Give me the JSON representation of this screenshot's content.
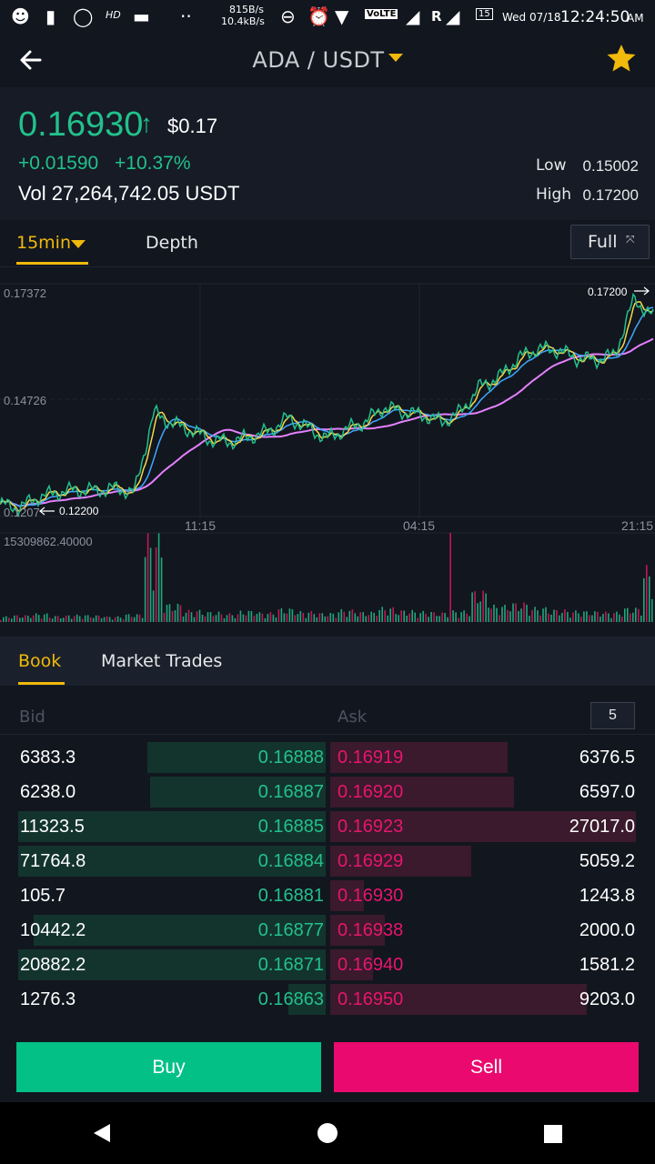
{
  "status_bar": {
    "net_up": "815B/s",
    "net_down": "10.4kB/s",
    "hd": "HD",
    "volte": "VoLTE",
    "roaming": "R",
    "notif_count": "15",
    "date": "Wed 07/18",
    "time": "12:24:50",
    "ampm": "AM"
  },
  "header": {
    "pair": "ADA / USDT",
    "accent": "#f0b90b"
  },
  "ticker": {
    "last_price": "0.16930",
    "usd_price": "$0.17",
    "change_abs": "+0.01590",
    "change_pct": "+10.37%",
    "volume": "Vol 27,264,742.05 USDT",
    "low_label": "Low",
    "low_value": "0.15002",
    "high_label": "High",
    "high_value": "0.17200",
    "up_color": "#22c18b",
    "down_color": "#e8156e"
  },
  "chart_tabs": {
    "interval": "15min",
    "depth": "Depth",
    "full": "Full"
  },
  "chart_data": {
    "type": "line",
    "y_axis_labels": [
      "0.17372",
      "0.14726",
      "0.1207"
    ],
    "x_axis_labels": [
      "11:15",
      "04:15",
      "21:15"
    ],
    "max_marker": "0.17200",
    "min_marker": "0.12200",
    "volume_max_label": "15309862.40000",
    "price": [
      0.1235,
      0.1227,
      0.1251,
      0.1262,
      0.1268,
      0.1266,
      0.1271,
      0.1262,
      0.1443,
      0.1418,
      0.1402,
      0.1381,
      0.1377,
      0.1389,
      0.1401,
      0.1432,
      0.1409,
      0.1385,
      0.1405,
      0.1423,
      0.1456,
      0.1445,
      0.1438,
      0.1422,
      0.1446,
      0.1504,
      0.1525,
      0.1568,
      0.1589,
      0.1586,
      0.1568,
      0.1563,
      0.1575,
      0.1702,
      0.1662
    ],
    "volume": [
      1.0,
      1.2,
      1.5,
      1.1,
      1.3,
      1.2,
      1.0,
      1.4,
      15.3,
      3.2,
      2.1,
      1.8,
      1.5,
      2.0,
      1.7,
      2.4,
      1.9,
      1.6,
      2.2,
      1.8,
      2.6,
      2.1,
      1.9,
      1.7,
      2.0,
      5.5,
      3.0,
      3.4,
      2.6,
      2.2,
      2.0,
      1.9,
      1.8,
      2.5,
      9.8
    ]
  },
  "book_tabs": {
    "book": "Book",
    "trades": "Market Trades"
  },
  "order_book": {
    "bid_header": "Bid",
    "ask_header": "Ask",
    "depth": "5",
    "max_qty": 71764.8,
    "rows": [
      {
        "bid_qty": "6383.3",
        "bid_price": "0.16888",
        "ask_price": "0.16919",
        "ask_qty": "6376.5",
        "bid_fill": 0.58,
        "ask_fill": 0.58
      },
      {
        "bid_qty": "6238.0",
        "bid_price": "0.16887",
        "ask_price": "0.16920",
        "ask_qty": "6597.0",
        "bid_fill": 0.57,
        "ask_fill": 0.6
      },
      {
        "bid_qty": "11323.5",
        "bid_price": "0.16885",
        "ask_price": "0.16923",
        "ask_qty": "27017.0",
        "bid_fill": 1.0,
        "ask_fill": 1.0
      },
      {
        "bid_qty": "71764.8",
        "bid_price": "0.16884",
        "ask_price": "0.16929",
        "ask_qty": "5059.2",
        "bid_fill": 1.0,
        "ask_fill": 0.46
      },
      {
        "bid_qty": "105.7",
        "bid_price": "0.16881",
        "ask_price": "0.16930",
        "ask_qty": "1243.8",
        "bid_fill": 0.0,
        "ask_fill": 0.11
      },
      {
        "bid_qty": "10442.2",
        "bid_price": "0.16877",
        "ask_price": "0.16938",
        "ask_qty": "2000.0",
        "bid_fill": 0.95,
        "ask_fill": 0.18
      },
      {
        "bid_qty": "20882.2",
        "bid_price": "0.16871",
        "ask_price": "0.16940",
        "ask_qty": "1581.2",
        "bid_fill": 1.0,
        "ask_fill": 0.14
      },
      {
        "bid_qty": "1276.3",
        "bid_price": "0.16863",
        "ask_price": "0.16950",
        "ask_qty": "9203.0",
        "bid_fill": 0.12,
        "ask_fill": 0.84
      }
    ]
  },
  "actions": {
    "buy": "Buy",
    "sell": "Sell"
  }
}
